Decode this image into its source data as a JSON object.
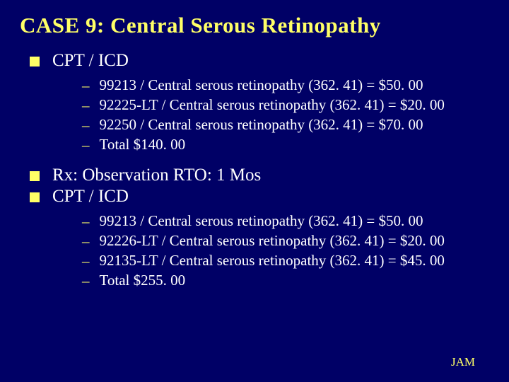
{
  "colors": {
    "background": "#000066",
    "text": "#ffffff",
    "accent": "#ffff66"
  },
  "typography": {
    "title_fontsize": 31,
    "bullet_fontsize": 25,
    "sub_fontsize": 21,
    "footer_fontsize": 17
  },
  "title": "CASE 9: Central Serous Retinopathy",
  "sections": [
    {
      "label": "CPT / ICD",
      "items": [
        "99213 / Central serous retinopathy (362. 41) = $50. 00",
        "92225-LT / Central serous retinopathy (362. 41) = $20. 00",
        "92250 / Central serous retinopathy (362. 41) = $70. 00",
        "Total $140. 00"
      ]
    },
    {
      "label": "Rx: Observation   RTO:  1 Mos",
      "items": []
    },
    {
      "label": "CPT / ICD",
      "items": [
        "99213 / Central serous retinopathy (362. 41) = $50. 00",
        "92226-LT / Central serous retinopathy (362. 41) = $20. 00",
        "92135-LT  / Central serous retinopathy (362. 41) = $45. 00",
        "Total $255. 00"
      ]
    }
  ],
  "footer": "JAM"
}
